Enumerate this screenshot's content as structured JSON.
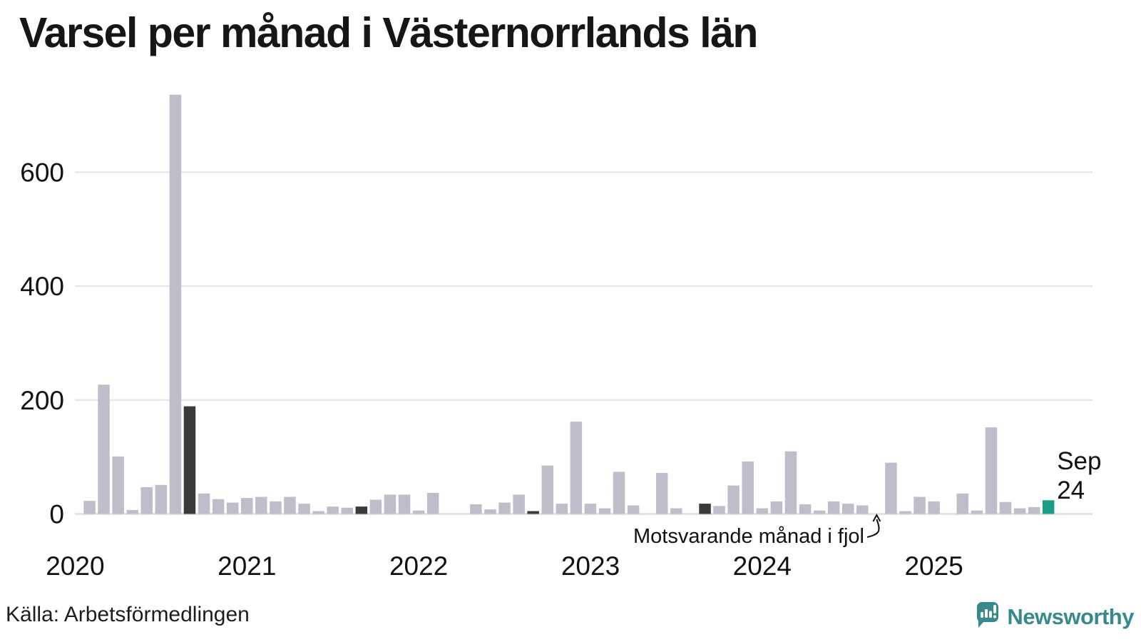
{
  "title": "Varsel per månad i Västernorrlands län",
  "source": "Källa: Arbetsförmedlingen",
  "logo": {
    "text": "Newsworthy",
    "icon": "speech-bubble-bar-chart",
    "color": "#368a8c"
  },
  "chart_data": {
    "type": "bar",
    "title": "Varsel per månad i Västernorrlands län",
    "xlabel": "",
    "ylabel": "",
    "ylim": [
      0,
      760
    ],
    "y_ticks": [
      0,
      200,
      400,
      600
    ],
    "grid": "horizontal",
    "year_ticks": [
      "2020",
      "2021",
      "2022",
      "2023",
      "2024",
      "2025"
    ],
    "annotation_same_month": "Motsvarande månad i fjol",
    "annotation_target_month": "Sep 2024",
    "last_point_label_line1": "Sep",
    "last_point_label_line2": "24",
    "colors": {
      "bar_default": "#c0bdcb",
      "bar_september": "#3a3a3c",
      "bar_current": "#1b9c87",
      "gridline": "#e3e2e8",
      "axis_text": "#111111",
      "annotation_text": "#111111"
    },
    "series": [
      {
        "month": "Feb 2020",
        "value": 23,
        "kind": "default"
      },
      {
        "month": "Mar 2020",
        "value": 227,
        "kind": "default"
      },
      {
        "month": "Apr 2020",
        "value": 101,
        "kind": "default"
      },
      {
        "month": "Maj 2020",
        "value": 7,
        "kind": "default"
      },
      {
        "month": "Jun 2020",
        "value": 47,
        "kind": "default"
      },
      {
        "month": "Jul 2020",
        "value": 51,
        "kind": "default"
      },
      {
        "month": "Aug 2020",
        "value": 736,
        "kind": "default"
      },
      {
        "month": "Sep 2020",
        "value": 189,
        "kind": "september"
      },
      {
        "month": "Okt 2020",
        "value": 36,
        "kind": "default"
      },
      {
        "month": "Nov 2020",
        "value": 26,
        "kind": "default"
      },
      {
        "month": "Dec 2020",
        "value": 20,
        "kind": "default"
      },
      {
        "month": "Jan 2021",
        "value": 28,
        "kind": "default"
      },
      {
        "month": "Feb 2021",
        "value": 30,
        "kind": "default"
      },
      {
        "month": "Mar 2021",
        "value": 22,
        "kind": "default"
      },
      {
        "month": "Apr 2021",
        "value": 30,
        "kind": "default"
      },
      {
        "month": "Maj 2021",
        "value": 18,
        "kind": "default"
      },
      {
        "month": "Jun 2021",
        "value": 5,
        "kind": "default"
      },
      {
        "month": "Jul 2021",
        "value": 13,
        "kind": "default"
      },
      {
        "month": "Aug 2021",
        "value": 11,
        "kind": "default"
      },
      {
        "month": "Sep 2021",
        "value": 13,
        "kind": "september"
      },
      {
        "month": "Okt 2021",
        "value": 25,
        "kind": "default"
      },
      {
        "month": "Nov 2021",
        "value": 34,
        "kind": "default"
      },
      {
        "month": "Dec 2021",
        "value": 34,
        "kind": "default"
      },
      {
        "month": "Jan 2022",
        "value": 6,
        "kind": "default"
      },
      {
        "month": "Feb 2022",
        "value": 37,
        "kind": "default"
      },
      {
        "month": "Mar 2022",
        "value": 0,
        "kind": "default"
      },
      {
        "month": "Apr 2022",
        "value": 0,
        "kind": "default"
      },
      {
        "month": "Maj 2022",
        "value": 17,
        "kind": "default"
      },
      {
        "month": "Jun 2022",
        "value": 8,
        "kind": "default"
      },
      {
        "month": "Jul 2022",
        "value": 20,
        "kind": "default"
      },
      {
        "month": "Aug 2022",
        "value": 34,
        "kind": "default"
      },
      {
        "month": "Sep 2022",
        "value": 5,
        "kind": "september"
      },
      {
        "month": "Okt 2022",
        "value": 85,
        "kind": "default"
      },
      {
        "month": "Nov 2022",
        "value": 18,
        "kind": "default"
      },
      {
        "month": "Dec 2022",
        "value": 162,
        "kind": "default"
      },
      {
        "month": "Jan 2023",
        "value": 18,
        "kind": "default"
      },
      {
        "month": "Feb 2023",
        "value": 10,
        "kind": "default"
      },
      {
        "month": "Mar 2023",
        "value": 74,
        "kind": "default"
      },
      {
        "month": "Apr 2023",
        "value": 15,
        "kind": "default"
      },
      {
        "month": "Maj 2023",
        "value": 0,
        "kind": "default"
      },
      {
        "month": "Jun 2023",
        "value": 72,
        "kind": "default"
      },
      {
        "month": "Jul 2023",
        "value": 10,
        "kind": "default"
      },
      {
        "month": "Aug 2023",
        "value": 0,
        "kind": "default"
      },
      {
        "month": "Sep 2023",
        "value": 18,
        "kind": "september"
      },
      {
        "month": "Okt 2023",
        "value": 14,
        "kind": "default"
      },
      {
        "month": "Nov 2023",
        "value": 50,
        "kind": "default"
      },
      {
        "month": "Dec 2023",
        "value": 92,
        "kind": "default"
      },
      {
        "month": "Jan 2024",
        "value": 10,
        "kind": "default"
      },
      {
        "month": "Feb 2024",
        "value": 22,
        "kind": "default"
      },
      {
        "month": "Mar 2024",
        "value": 110,
        "kind": "default"
      },
      {
        "month": "Apr 2024",
        "value": 17,
        "kind": "default"
      },
      {
        "month": "Maj 2024",
        "value": 6,
        "kind": "default"
      },
      {
        "month": "Jun 2024",
        "value": 22,
        "kind": "default"
      },
      {
        "month": "Jul 2024",
        "value": 18,
        "kind": "default"
      },
      {
        "month": "Aug 2024",
        "value": 15,
        "kind": "default"
      },
      {
        "month": "Sep 2024",
        "value": 0,
        "kind": "september"
      },
      {
        "month": "Okt 2024",
        "value": 90,
        "kind": "default"
      },
      {
        "month": "Nov 2024",
        "value": 5,
        "kind": "default"
      },
      {
        "month": "Dec 2024",
        "value": 30,
        "kind": "default"
      },
      {
        "month": "Jan 2025",
        "value": 22,
        "kind": "default"
      },
      {
        "month": "Feb 2025",
        "value": 0,
        "kind": "default"
      },
      {
        "month": "Mar 2025",
        "value": 36,
        "kind": "default"
      },
      {
        "month": "Apr 2025",
        "value": 6,
        "kind": "default"
      },
      {
        "month": "Maj 2025",
        "value": 152,
        "kind": "default"
      },
      {
        "month": "Jun 2025",
        "value": 21,
        "kind": "default"
      },
      {
        "month": "Jul 2025",
        "value": 10,
        "kind": "default"
      },
      {
        "month": "Aug 2025",
        "value": 12,
        "kind": "default"
      },
      {
        "month": "Sep 2025",
        "value": 24,
        "kind": "current"
      }
    ]
  }
}
